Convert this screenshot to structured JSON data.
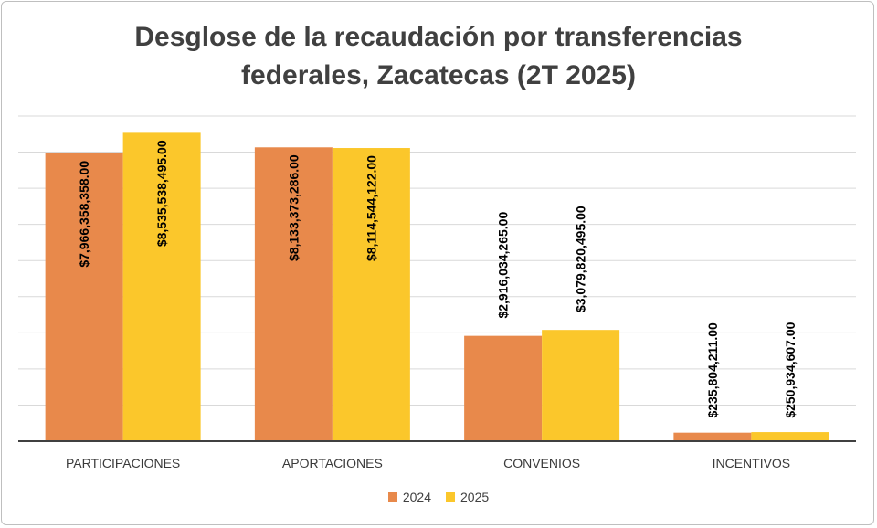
{
  "chart_data": {
    "type": "bar",
    "title_lines": [
      "Desglose de la recaudación por transferencias",
      "federales, Zacatecas (2T 2025)"
    ],
    "title": "Desglose de la recaudación por transferencias federales, Zacatecas (2T 2025)",
    "categories": [
      "PARTICIPACIONES",
      "APORTACIONES",
      "CONVENIOS",
      "INCENTIVOS"
    ],
    "series": [
      {
        "name": "2024",
        "color": "#E8894B",
        "values": [
          7966358358,
          8133373286,
          2916034265,
          235804211
        ],
        "labels": [
          "$7,966,358,358.00",
          "$8,133,373,286.00",
          "$2,916,034,265.00",
          "$235,804,211.00"
        ]
      },
      {
        "name": "2025",
        "color": "#FBC72B",
        "values": [
          8535538495,
          8114544122,
          3079820495,
          250934607
        ],
        "labels": [
          "$8,535,538,495.00",
          "$8,114,544,122.00",
          "$3,079,820,495.00",
          "$250,934,607.00"
        ]
      }
    ],
    "ylim": [
      0,
      9000000000
    ],
    "grid": true,
    "xlabel": "",
    "ylabel": "",
    "legend_position": "bottom"
  }
}
